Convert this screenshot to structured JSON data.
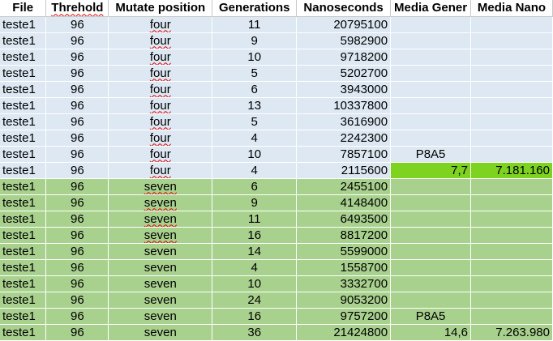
{
  "headers": [
    "File",
    "Threhold",
    "Mutate position",
    "Generations",
    "Nanoseconds",
    "Media Gener",
    "Media Nano"
  ],
  "colors": {
    "group_four": "#dde8f3",
    "group_seven": "#a9d18e",
    "highlight": "#7ed321",
    "spellcheck": "#e00000"
  },
  "rows": [
    {
      "file": "teste1",
      "thr": "96",
      "mut": "four",
      "gen": "11",
      "ns": "20795100",
      "mg": "",
      "mn": ""
    },
    {
      "file": "teste1",
      "thr": "96",
      "mut": "four",
      "gen": "9",
      "ns": "5982900",
      "mg": "",
      "mn": ""
    },
    {
      "file": "teste1",
      "thr": "96",
      "mut": "four",
      "gen": "10",
      "ns": "9718200",
      "mg": "",
      "mn": ""
    },
    {
      "file": "teste1",
      "thr": "96",
      "mut": "four",
      "gen": "5",
      "ns": "5202700",
      "mg": "",
      "mn": ""
    },
    {
      "file": "teste1",
      "thr": "96",
      "mut": "four",
      "gen": "6",
      "ns": "3943000",
      "mg": "",
      "mn": ""
    },
    {
      "file": "teste1",
      "thr": "96",
      "mut": "four",
      "gen": "13",
      "ns": "10337800",
      "mg": "",
      "mn": ""
    },
    {
      "file": "teste1",
      "thr": "96",
      "mut": "four",
      "gen": "5",
      "ns": "3616900",
      "mg": "",
      "mn": ""
    },
    {
      "file": "teste1",
      "thr": "96",
      "mut": "four",
      "gen": "4",
      "ns": "2242300",
      "mg": "",
      "mn": ""
    },
    {
      "file": "teste1",
      "thr": "96",
      "mut": "four",
      "gen": "10",
      "ns": "7857100",
      "mg": "P8A5",
      "mn": ""
    },
    {
      "file": "teste1",
      "thr": "96",
      "mut": "four",
      "gen": "4",
      "ns": "2115600",
      "mg": "7,7",
      "mn": "7.181.160"
    },
    {
      "file": "teste1",
      "thr": "96",
      "mut": "seven",
      "gen": "6",
      "ns": "2455100",
      "mg": "",
      "mn": ""
    },
    {
      "file": "teste1",
      "thr": "96",
      "mut": "seven",
      "gen": "9",
      "ns": "4148400",
      "mg": "",
      "mn": ""
    },
    {
      "file": "teste1",
      "thr": "96",
      "mut": "seven",
      "gen": "11",
      "ns": "6493500",
      "mg": "",
      "mn": ""
    },
    {
      "file": "teste1",
      "thr": "96",
      "mut": "seven",
      "gen": "16",
      "ns": "8817200",
      "mg": "",
      "mn": ""
    },
    {
      "file": "teste1",
      "thr": "96",
      "mut": "seven",
      "gen": "14",
      "ns": "5599000",
      "mg": "",
      "mn": ""
    },
    {
      "file": "teste1",
      "thr": "96",
      "mut": "seven",
      "gen": "4",
      "ns": "1558700",
      "mg": "",
      "mn": ""
    },
    {
      "file": "teste1",
      "thr": "96",
      "mut": "seven",
      "gen": "10",
      "ns": "3332700",
      "mg": "",
      "mn": ""
    },
    {
      "file": "teste1",
      "thr": "96",
      "mut": "seven",
      "gen": "24",
      "ns": "9053200",
      "mg": "",
      "mn": ""
    },
    {
      "file": "teste1",
      "thr": "96",
      "mut": "seven",
      "gen": "16",
      "ns": "9757200",
      "mg": "P8A5",
      "mn": ""
    },
    {
      "file": "teste1",
      "thr": "96",
      "mut": "seven",
      "gen": "36",
      "ns": "21424800",
      "mg": "14,6",
      "mn": "7.263.980"
    }
  ]
}
